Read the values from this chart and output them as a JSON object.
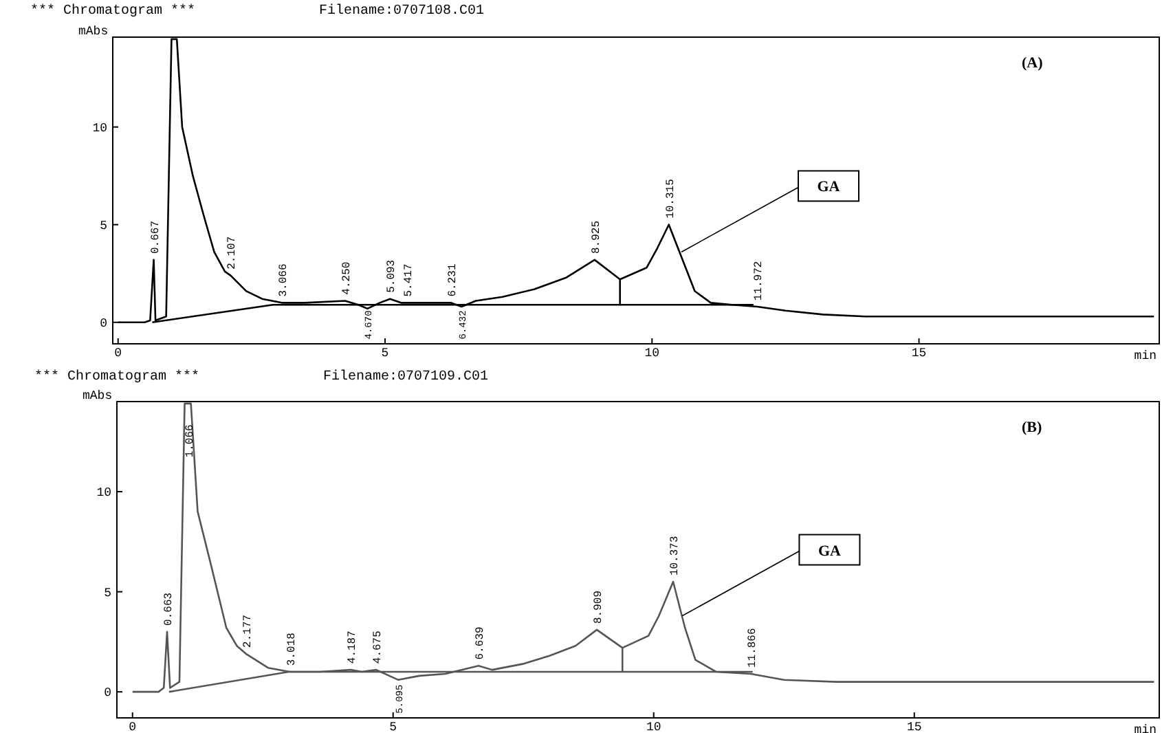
{
  "chart_data": [
    {
      "type": "line",
      "title": "*** Chromatogram ***",
      "subtitle": "Filename:0707108.C01",
      "ylabel": "mAbs",
      "xlabel": "min",
      "xlim": [
        -0.1,
        19.5
      ],
      "xticks": [
        0,
        5,
        10,
        15
      ],
      "ylim": [
        -1.1,
        14.6
      ],
      "yticks": [
        0,
        5,
        10
      ],
      "series": [
        {
          "color": "#000000",
          "x": [
            0,
            0.5,
            0.6,
            0.667,
            0.7,
            0.9,
            1.0,
            1.1,
            1.2,
            1.4,
            1.6,
            1.8,
            2.0,
            2.107,
            2.4,
            2.7,
            3.066,
            3.5,
            4.25,
            4.5,
            4.67,
            4.9,
            5.093,
            5.3,
            5.417,
            5.8,
            6.231,
            6.432,
            6.7,
            7.2,
            7.8,
            8.4,
            8.925,
            9.4,
            9.9,
            10.1,
            10.315,
            10.6,
            10.8,
            11.1,
            11.5,
            11.972,
            12.5,
            13.2,
            14,
            19.4
          ],
          "values": [
            0,
            0,
            0.1,
            3.2,
            0.1,
            0.3,
            14.5,
            14.5,
            10,
            7.5,
            5.5,
            3.6,
            2.6,
            2.4,
            1.6,
            1.2,
            1.0,
            1.0,
            1.1,
            0.9,
            0.7,
            1.0,
            1.2,
            1.0,
            1.0,
            1.0,
            1.0,
            0.8,
            1.1,
            1.3,
            1.7,
            2.3,
            3.2,
            2.2,
            2.8,
            3.8,
            5.0,
            3.0,
            1.6,
            1.0,
            0.9,
            0.8,
            0.6,
            0.4,
            0.3,
            0.3
          ]
        },
        {
          "color": "#000000",
          "x": [
            0.64,
            2.9,
            11.9
          ],
          "values": [
            0,
            0.9,
            0.9
          ]
        },
        {
          "color": "#000000",
          "x": [
            9.4,
            9.4
          ],
          "values": [
            0.9,
            2.2
          ]
        }
      ],
      "annotations": [
        "(A)",
        {
          "text": "0.667",
          "x": 0.667,
          "y": 3.3
        },
        {
          "text": "2.107",
          "x": 2.107,
          "y": 2.5
        },
        {
          "text": "3.066",
          "x": 3.066,
          "y": 1.1
        },
        {
          "text": "4.250",
          "x": 4.25,
          "y": 1.2
        },
        {
          "text": "4.670",
          "x": 4.67,
          "y": 0.75
        },
        {
          "text": "5.093",
          "x": 5.093,
          "y": 1.3
        },
        {
          "text": "5.417",
          "x": 5.417,
          "y": 1.1
        },
        {
          "text": "6.231",
          "x": 6.231,
          "y": 1.1
        },
        {
          "text": "6.432",
          "x": 6.432,
          "y": 0.75
        },
        {
          "text": "8.925",
          "x": 8.925,
          "y": 3.3
        },
        {
          "text": "10.315",
          "x": 10.315,
          "y": 5.1
        },
        {
          "text": "11.972",
          "x": 11.972,
          "y": 0.9
        },
        {
          "text": "GA",
          "x": 10.55,
          "y": 3.6
        }
      ]
    },
    {
      "type": "line",
      "title": "*** Chromatogram ***",
      "subtitle": "Filename:0707109.C01",
      "ylabel": "mAbs",
      "xlabel": "min",
      "xlim": [
        -0.3,
        19.7
      ],
      "xticks": [
        0,
        5,
        10,
        15
      ],
      "ylim": [
        -1.3,
        14.5
      ],
      "yticks": [
        0,
        5,
        10
      ],
      "series": [
        {
          "color": "#555555",
          "x": [
            0,
            0.5,
            0.6,
            0.663,
            0.72,
            0.9,
            1.0,
            1.12,
            1.25,
            1.5,
            1.8,
            2.0,
            2.177,
            2.6,
            3.018,
            3.6,
            4.187,
            4.4,
            4.675,
            5.095,
            5.5,
            6.0,
            6.639,
            6.9,
            7.5,
            8.0,
            8.5,
            8.909,
            9.4,
            9.9,
            10.1,
            10.373,
            10.6,
            10.8,
            11.2,
            11.866,
            12.5,
            13.5,
            19.6
          ],
          "values": [
            0,
            0,
            0.2,
            3.0,
            0.2,
            0.5,
            14.4,
            14.4,
            9,
            6.4,
            3.2,
            2.3,
            1.9,
            1.2,
            1.0,
            1.0,
            1.1,
            1.0,
            1.1,
            0.6,
            0.8,
            0.9,
            1.3,
            1.1,
            1.4,
            1.8,
            2.3,
            3.1,
            2.2,
            2.8,
            3.8,
            5.5,
            3.2,
            1.6,
            1.0,
            0.9,
            0.6,
            0.5,
            0.5
          ]
        },
        {
          "color": "#555555",
          "x": [
            0.7,
            3.0,
            11.9
          ],
          "values": [
            0,
            1.0,
            1.0
          ]
        },
        {
          "color": "#555555",
          "x": [
            9.4,
            9.4
          ],
          "values": [
            1.0,
            2.2
          ]
        }
      ],
      "annotations": [
        "(B)",
        {
          "text": "0.663",
          "x": 0.663,
          "y": 3.1
        },
        {
          "text": "1.066",
          "x": 1.066,
          "y": 11.5
        },
        {
          "text": "2.177",
          "x": 2.177,
          "y": 2.0
        },
        {
          "text": "3.018",
          "x": 3.018,
          "y": 1.1
        },
        {
          "text": "4.187",
          "x": 4.187,
          "y": 1.2
        },
        {
          "text": "4.675",
          "x": 4.675,
          "y": 1.2
        },
        {
          "text": "5.095",
          "x": 5.095,
          "y": 0.5
        },
        {
          "text": "6.639",
          "x": 6.639,
          "y": 1.4
        },
        {
          "text": "8.909",
          "x": 8.909,
          "y": 3.2
        },
        {
          "text": "10.373",
          "x": 10.373,
          "y": 5.6
        },
        {
          "text": "11.866",
          "x": 11.866,
          "y": 1.0
        },
        {
          "text": "GA",
          "x": 10.55,
          "y": 3.8
        }
      ]
    }
  ]
}
